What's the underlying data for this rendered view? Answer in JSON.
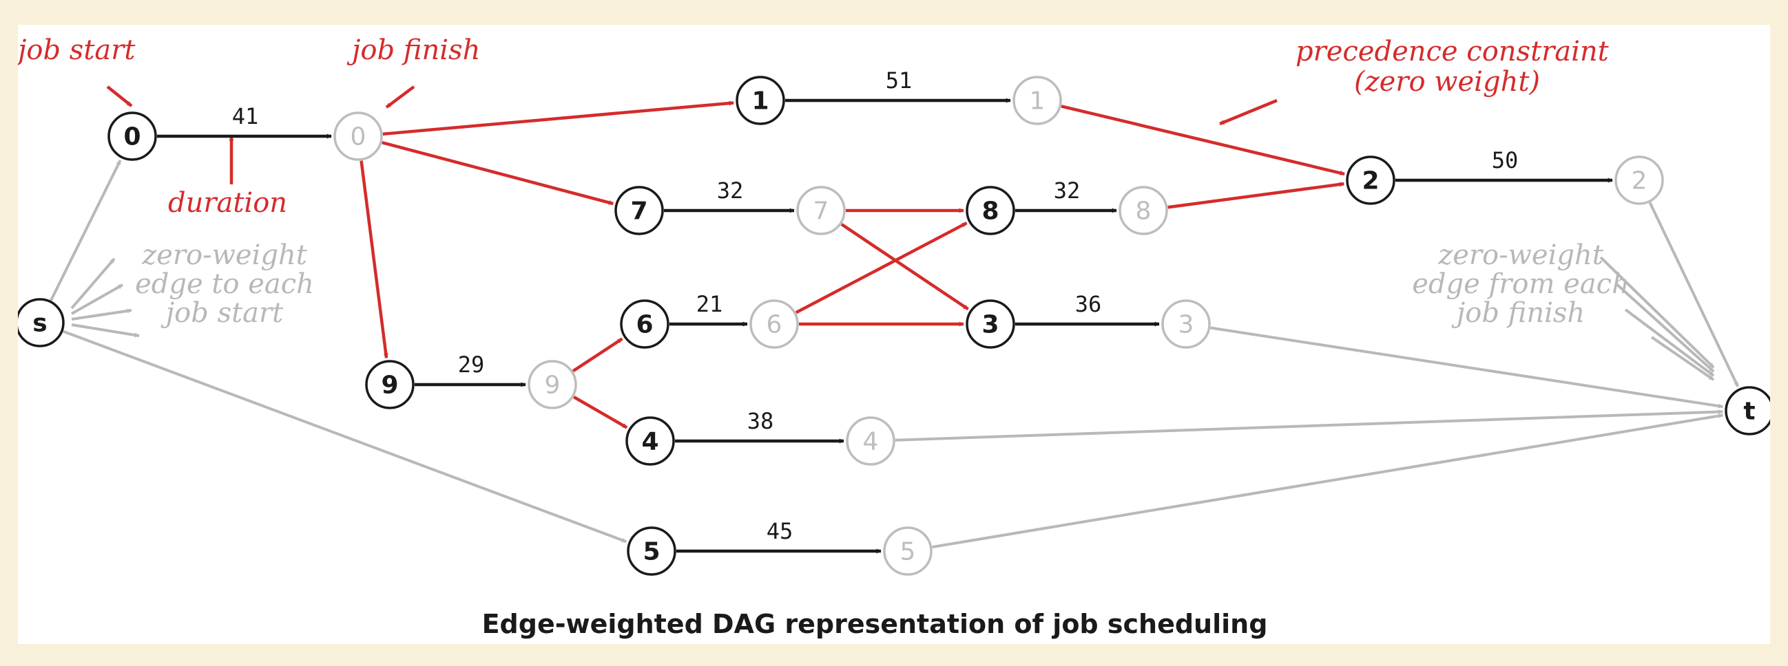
{
  "caption": "Edge-weighted DAG representation of job scheduling",
  "colors": {
    "duration_edge": "#1a1a1a",
    "precedence_edge": "#d52b2b",
    "zero_edge": "#b8b8b8",
    "annotation": "#d52b2b",
    "background": "#f8f0d8"
  },
  "annotations": {
    "job_start": "job start",
    "job_finish": "job finish",
    "duration": "duration",
    "precedence_line1": "precedence constraint",
    "precedence_line2": "(zero weight)",
    "zero_to_1": "zero-weight",
    "zero_to_2": "edge to each",
    "zero_to_3": "job start",
    "zero_from_1": "zero-weight",
    "zero_from_2": "edge from each",
    "zero_from_3": "job finish"
  },
  "nodes": [
    {
      "id": "s",
      "label": "s",
      "kind": "start"
    },
    {
      "id": "t",
      "label": "t",
      "kind": "start"
    },
    {
      "id": "0s",
      "label": "0",
      "kind": "start"
    },
    {
      "id": "0f",
      "label": "0",
      "kind": "finish"
    },
    {
      "id": "1s",
      "label": "1",
      "kind": "start"
    },
    {
      "id": "1f",
      "label": "1",
      "kind": "finish"
    },
    {
      "id": "2s",
      "label": "2",
      "kind": "start"
    },
    {
      "id": "2f",
      "label": "2",
      "kind": "finish"
    },
    {
      "id": "7s",
      "label": "7",
      "kind": "start"
    },
    {
      "id": "7f",
      "label": "7",
      "kind": "finish"
    },
    {
      "id": "8s",
      "label": "8",
      "kind": "start"
    },
    {
      "id": "8f",
      "label": "8",
      "kind": "finish"
    },
    {
      "id": "6s",
      "label": "6",
      "kind": "start"
    },
    {
      "id": "6f",
      "label": "6",
      "kind": "finish"
    },
    {
      "id": "3s",
      "label": "3",
      "kind": "start"
    },
    {
      "id": "3f",
      "label": "3",
      "kind": "finish"
    },
    {
      "id": "9s",
      "label": "9",
      "kind": "start"
    },
    {
      "id": "9f",
      "label": "9",
      "kind": "finish"
    },
    {
      "id": "4s",
      "label": "4",
      "kind": "start"
    },
    {
      "id": "4f",
      "label": "4",
      "kind": "finish"
    },
    {
      "id": "5s",
      "label": "5",
      "kind": "start"
    },
    {
      "id": "5f",
      "label": "5",
      "kind": "finish"
    }
  ],
  "edges": [
    {
      "from": "0s",
      "to": "0f",
      "kind": "duration",
      "weight": "41"
    },
    {
      "from": "1s",
      "to": "1f",
      "kind": "duration",
      "weight": "51"
    },
    {
      "from": "2s",
      "to": "2f",
      "kind": "duration",
      "weight": "50"
    },
    {
      "from": "7s",
      "to": "7f",
      "kind": "duration",
      "weight": "32"
    },
    {
      "from": "8s",
      "to": "8f",
      "kind": "duration",
      "weight": "32"
    },
    {
      "from": "6s",
      "to": "6f",
      "kind": "duration",
      "weight": "21"
    },
    {
      "from": "3s",
      "to": "3f",
      "kind": "duration",
      "weight": "36"
    },
    {
      "from": "9s",
      "to": "9f",
      "kind": "duration",
      "weight": "29"
    },
    {
      "from": "4s",
      "to": "4f",
      "kind": "duration",
      "weight": "38"
    },
    {
      "from": "5s",
      "to": "5f",
      "kind": "duration",
      "weight": "45"
    },
    {
      "from": "0f",
      "to": "1s",
      "kind": "precedence"
    },
    {
      "from": "0f",
      "to": "7s",
      "kind": "precedence"
    },
    {
      "from": "0f",
      "to": "9s",
      "kind": "precedence"
    },
    {
      "from": "1f",
      "to": "2s",
      "kind": "precedence"
    },
    {
      "from": "7f",
      "to": "8s",
      "kind": "precedence"
    },
    {
      "from": "7f",
      "to": "3s",
      "kind": "precedence"
    },
    {
      "from": "8f",
      "to": "2s",
      "kind": "precedence"
    },
    {
      "from": "6f",
      "to": "8s",
      "kind": "precedence"
    },
    {
      "from": "6f",
      "to": "3s",
      "kind": "precedence"
    },
    {
      "from": "9f",
      "to": "6s",
      "kind": "precedence"
    },
    {
      "from": "9f",
      "to": "4s",
      "kind": "precedence"
    },
    {
      "from": "s",
      "to": "0s",
      "kind": "zero"
    },
    {
      "from": "s",
      "to": "5s",
      "kind": "zero"
    },
    {
      "from": "2f",
      "to": "t",
      "kind": "zero"
    },
    {
      "from": "3f",
      "to": "t",
      "kind": "zero"
    },
    {
      "from": "4f",
      "to": "t",
      "kind": "zero"
    },
    {
      "from": "5f",
      "to": "t",
      "kind": "zero"
    }
  ]
}
